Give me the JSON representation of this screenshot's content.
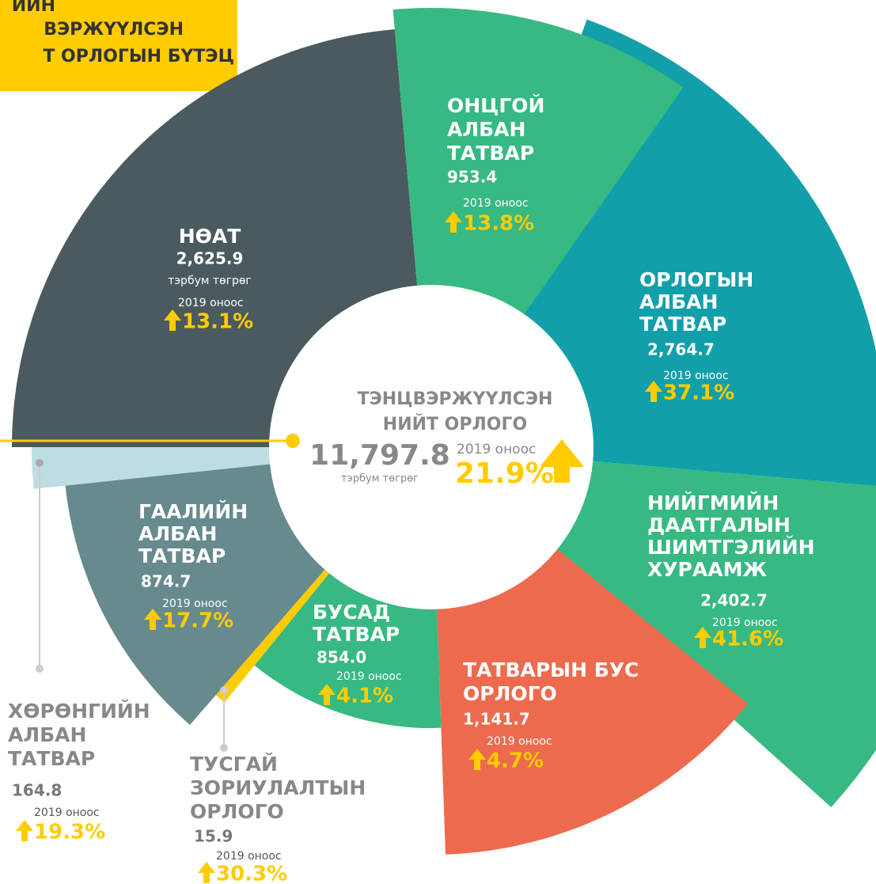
{
  "chart_data": {
    "type": "rose",
    "title_lines": [
      "ИЙН",
      "ВЭРЖҮҮЛСЭН",
      "Т ОРЛОГЫН БҮТЭЦ"
    ],
    "categories": [
      [
        "НӨАТ"
      ],
      [
        "ОНЦГОЙ",
        "АЛБАН",
        "ТАТВАР"
      ],
      [
        "ОРЛОГЫН",
        "АЛБАН",
        "ТАТВАР"
      ],
      [
        "НИЙГМИЙН",
        "ДААТГАЛЫН",
        "ШИМТГЭЛИЙН",
        "ХУРААМЖ"
      ],
      [
        "ТАТВАРЫН БУС",
        "ОРЛОГО"
      ],
      [
        "БУСАД",
        "ТАТВАР"
      ],
      [
        "ТУСГАЙ",
        "ЗОРИУЛАЛТЫН",
        "ОРЛОГО"
      ],
      [
        "ГААЛИЙН",
        "АЛБАН",
        "ТАТВАР"
      ],
      [
        "ХӨРӨНГИЙН",
        "АЛБАН",
        "ТАТВАР"
      ]
    ],
    "values": [
      2625.9,
      953.4,
      2764.7,
      2402.7,
      1141.7,
      854.0,
      15.9,
      874.7,
      164.8
    ],
    "value_labels": [
      "2,625.9",
      "953.4",
      "2,764.7",
      "2,402.7",
      "1,141.7",
      "854.0",
      "15.9",
      "874.7",
      "164.8"
    ],
    "growth": [
      13.1,
      13.8,
      37.1,
      41.6,
      4.7,
      4.1,
      30.3,
      17.7,
      19.3
    ],
    "growth_labels": [
      "13.1%",
      "13.8%",
      "37.1%",
      "41.6%",
      "4.7%",
      "4.1%",
      "30.3%",
      "17.7%",
      "19.3%"
    ],
    "colors": [
      "#4a5a5e",
      "#37b982",
      "#11a0aa",
      "#37b982",
      "#ee6a4e",
      "#37b982",
      "#ffcc00",
      "#668a8e",
      "#bcdde2"
    ],
    "unit": "тэрбум төгрөг",
    "growth_caption": "2019 оноос",
    "center": {
      "title_lines": [
        "ТЭНЦВЭРЖҮҮЛСЭН",
        "НИЙТ ОРЛОГО"
      ],
      "total": 11797.8,
      "total_label": "11,797.8",
      "growth": 21.9,
      "growth_label": "21.9%"
    }
  }
}
